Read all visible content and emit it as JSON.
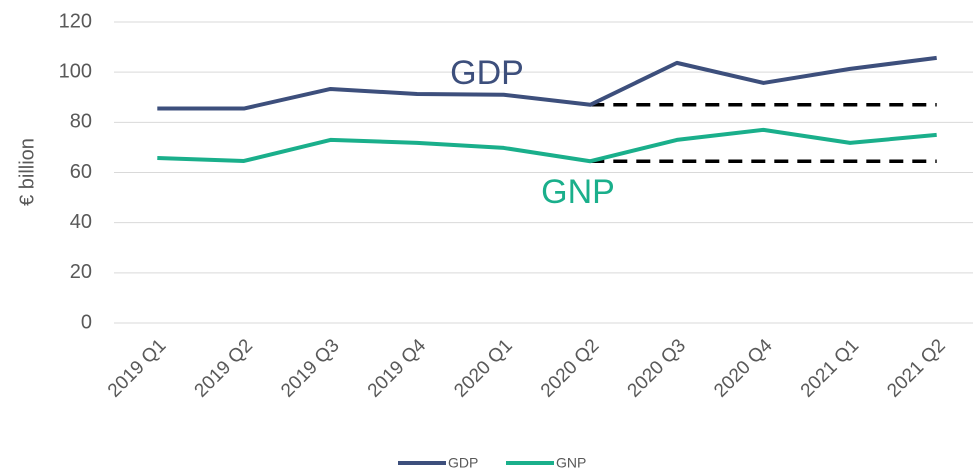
{
  "chart_data": {
    "type": "line",
    "y_label": "€ billion",
    "categories": [
      "2019 Q1",
      "2019 Q2",
      "2019 Q3",
      "2019 Q4",
      "2020 Q1",
      "2020 Q2",
      "2020 Q3",
      "2020 Q4",
      "2021 Q1",
      "2021 Q2"
    ],
    "series": [
      {
        "name": "GDP",
        "color": "#3d4f7c",
        "values": [
          85.5,
          85.5,
          93.3,
          91.3,
          91,
          87,
          103.7,
          95.7,
          101.3,
          105.7
        ]
      },
      {
        "name": "GNP",
        "color": "#1aaf8b",
        "values": [
          65.8,
          64.6,
          73,
          71.8,
          69.8,
          64.5,
          73,
          77,
          71.8,
          75
        ]
      }
    ],
    "reference_lines": [
      {
        "y": 87,
        "from": "2020 Q2",
        "to": "2021 Q2",
        "color": "#000000"
      },
      {
        "y": 64.5,
        "from": "2020 Q2",
        "to": "2021 Q2",
        "color": "#000000"
      }
    ],
    "annotations": [
      {
        "text": "GDP",
        "color": "#3d4f7c"
      },
      {
        "text": "GNP",
        "color": "#1aaf8b"
      }
    ],
    "ylim": [
      0,
      120
    ],
    "yticks": [
      0,
      20,
      40,
      60,
      80,
      100,
      120
    ],
    "grid": true,
    "legend": "bottom"
  }
}
